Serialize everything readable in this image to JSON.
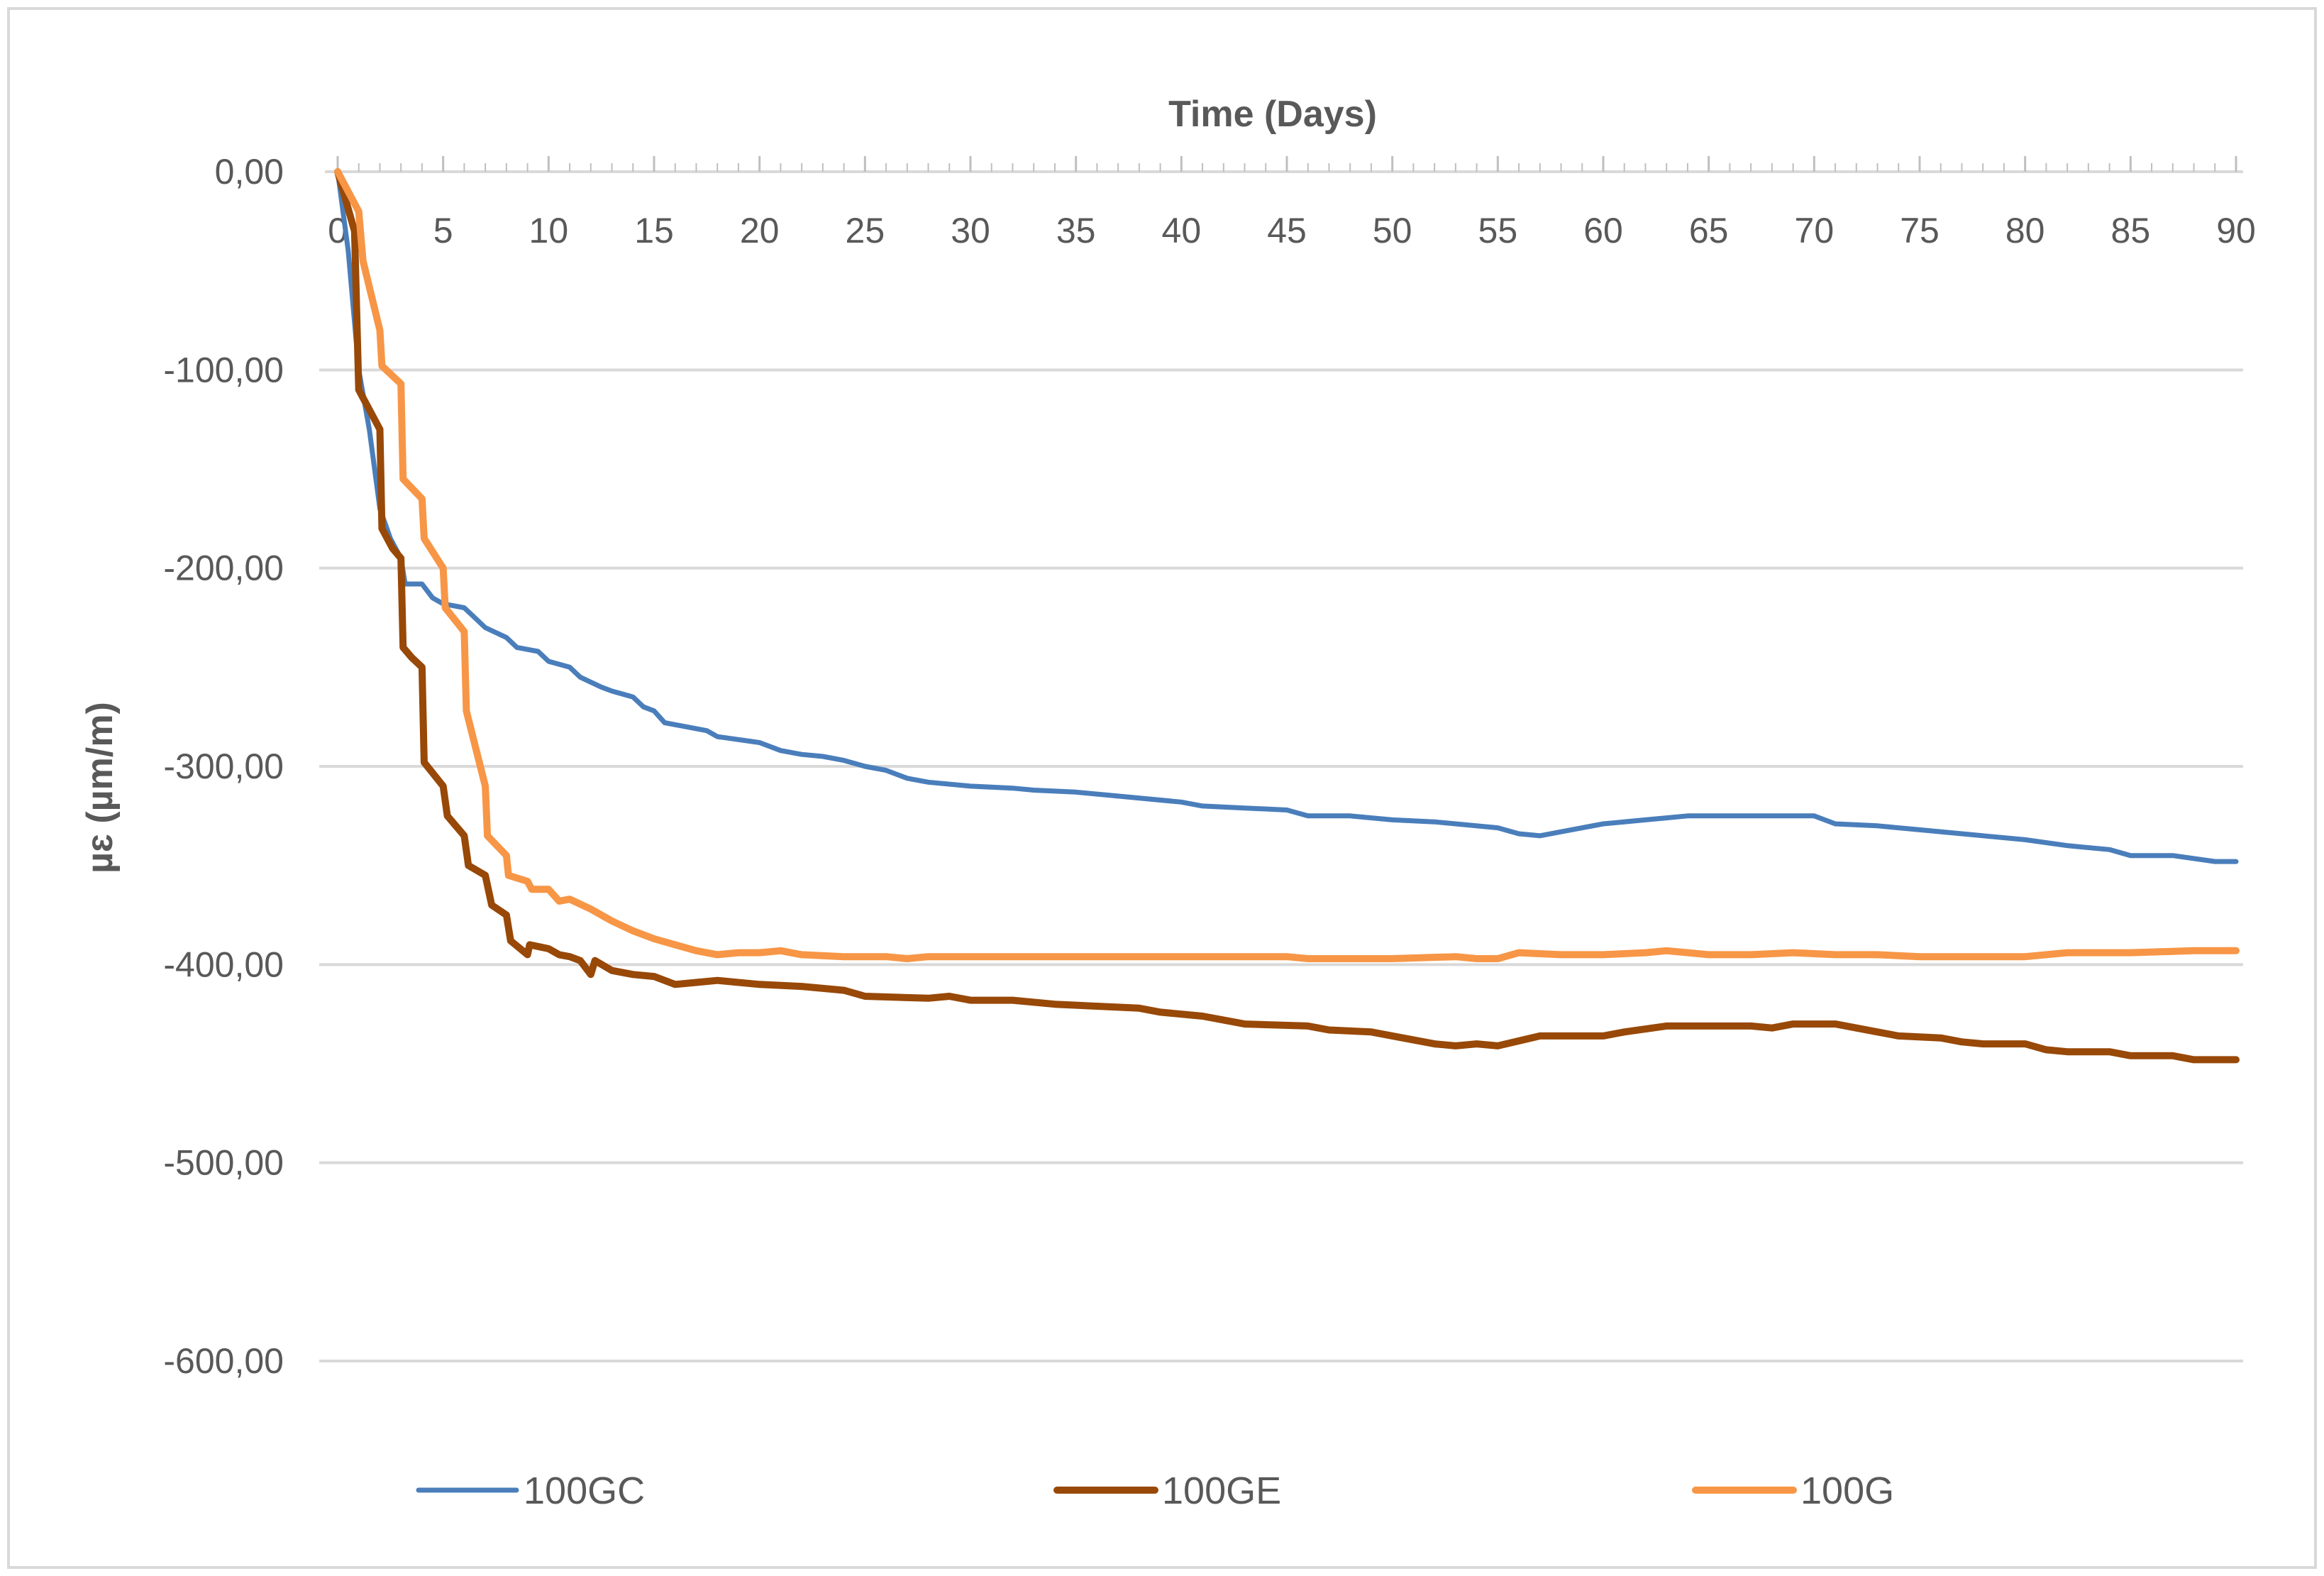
{
  "chart_data": {
    "type": "line",
    "title": "",
    "xlabel": "Time (Days)",
    "ylabel": "µɛ (µm/m)",
    "xlim": [
      0,
      90
    ],
    "ylim": [
      -600,
      0
    ],
    "x_ticks": [
      0,
      5,
      10,
      15,
      20,
      25,
      30,
      35,
      40,
      45,
      50,
      55,
      60,
      65,
      70,
      75,
      80,
      85,
      90
    ],
    "x_tick_labels": [
      "0",
      "5",
      "10",
      "15",
      "20",
      "25",
      "30",
      "35",
      "40",
      "45",
      "50",
      "55",
      "60",
      "65",
      "70",
      "75",
      "80",
      "85",
      "90"
    ],
    "y_ticks": [
      0,
      -100,
      -200,
      -300,
      -400,
      -500,
      -600
    ],
    "y_tick_labels": [
      "0,00",
      "-100,00",
      "-200,00",
      "-300,00",
      "-400,00",
      "-500,00",
      "-600,00"
    ],
    "grid": "horizontal",
    "x_axis_position": "top",
    "legend_position": "bottom",
    "series": [
      {
        "name": "100GC",
        "color": "#4A7EBB",
        "points": [
          [
            0,
            0
          ],
          [
            0.5,
            -40
          ],
          [
            1,
            -100
          ],
          [
            1.5,
            -130
          ],
          [
            2,
            -170
          ],
          [
            2.5,
            -185
          ],
          [
            3,
            -195
          ],
          [
            3.2,
            -208
          ],
          [
            4,
            -208
          ],
          [
            4.5,
            -215
          ],
          [
            5,
            -218
          ],
          [
            6,
            -220
          ],
          [
            6.5,
            -225
          ],
          [
            7,
            -230
          ],
          [
            8,
            -235
          ],
          [
            8.5,
            -240
          ],
          [
            9.5,
            -242
          ],
          [
            10,
            -247
          ],
          [
            11,
            -250
          ],
          [
            11.5,
            -255
          ],
          [
            12.5,
            -260
          ],
          [
            13,
            -262
          ],
          [
            14,
            -265
          ],
          [
            14.5,
            -270
          ],
          [
            15,
            -272
          ],
          [
            15.5,
            -278
          ],
          [
            16.5,
            -280
          ],
          [
            17.5,
            -282
          ],
          [
            18,
            -285
          ],
          [
            20,
            -288
          ],
          [
            21,
            -292
          ],
          [
            22,
            -294
          ],
          [
            23,
            -295
          ],
          [
            24,
            -297
          ],
          [
            25,
            -300
          ],
          [
            26,
            -302
          ],
          [
            27,
            -306
          ],
          [
            28,
            -308
          ],
          [
            30,
            -310
          ],
          [
            32,
            -311
          ],
          [
            33,
            -312
          ],
          [
            35,
            -313
          ],
          [
            37,
            -315
          ],
          [
            40,
            -318
          ],
          [
            41,
            -320
          ],
          [
            43,
            -321
          ],
          [
            45,
            -322
          ],
          [
            46,
            -325
          ],
          [
            48,
            -325
          ],
          [
            50,
            -327
          ],
          [
            52,
            -328
          ],
          [
            55,
            -331
          ],
          [
            56,
            -334
          ],
          [
            57,
            -335
          ],
          [
            58,
            -333
          ],
          [
            60,
            -329
          ],
          [
            62,
            -327
          ],
          [
            63,
            -326
          ],
          [
            64,
            -325
          ],
          [
            66,
            -325
          ],
          [
            68,
            -325
          ],
          [
            70,
            -325
          ],
          [
            71,
            -329
          ],
          [
            73,
            -330
          ],
          [
            75,
            -332
          ],
          [
            78,
            -335
          ],
          [
            80,
            -337
          ],
          [
            82,
            -340
          ],
          [
            84,
            -342
          ],
          [
            85,
            -345
          ],
          [
            87,
            -345
          ],
          [
            89,
            -348
          ],
          [
            90,
            -348
          ]
        ]
      },
      {
        "name": "100GE",
        "color": "#984807",
        "points": [
          [
            0,
            0
          ],
          [
            0.8,
            -30
          ],
          [
            1,
            -110
          ],
          [
            1.5,
            -120
          ],
          [
            2,
            -130
          ],
          [
            2.1,
            -180
          ],
          [
            2.6,
            -190
          ],
          [
            3,
            -195
          ],
          [
            3.1,
            -240
          ],
          [
            3.5,
            -245
          ],
          [
            4,
            -250
          ],
          [
            4.1,
            -298
          ],
          [
            5,
            -310
          ],
          [
            5.2,
            -325
          ],
          [
            6,
            -335
          ],
          [
            6.2,
            -350
          ],
          [
            7,
            -355
          ],
          [
            7.3,
            -370
          ],
          [
            8,
            -375
          ],
          [
            8.2,
            -388
          ],
          [
            9,
            -395
          ],
          [
            9.1,
            -390
          ],
          [
            10,
            -392
          ],
          [
            10.5,
            -395
          ],
          [
            11,
            -396
          ],
          [
            11.5,
            -398
          ],
          [
            12,
            -405
          ],
          [
            12.2,
            -398
          ],
          [
            13,
            -403
          ],
          [
            14,
            -405
          ],
          [
            15,
            -406
          ],
          [
            16,
            -410
          ],
          [
            17,
            -409
          ],
          [
            18,
            -408
          ],
          [
            20,
            -410
          ],
          [
            22,
            -411
          ],
          [
            24,
            -413
          ],
          [
            25,
            -416
          ],
          [
            28,
            -417
          ],
          [
            29,
            -416
          ],
          [
            30,
            -418
          ],
          [
            32,
            -418
          ],
          [
            34,
            -420
          ],
          [
            38,
            -422
          ],
          [
            39,
            -424
          ],
          [
            41,
            -426
          ],
          [
            43,
            -430
          ],
          [
            46,
            -431
          ],
          [
            47,
            -433
          ],
          [
            49,
            -434
          ],
          [
            50,
            -436
          ],
          [
            52,
            -440
          ],
          [
            53,
            -441
          ],
          [
            54,
            -440
          ],
          [
            55,
            -441
          ],
          [
            57,
            -436
          ],
          [
            60,
            -436
          ],
          [
            61,
            -434
          ],
          [
            63,
            -431
          ],
          [
            65,
            -431
          ],
          [
            67,
            -431
          ],
          [
            68,
            -432
          ],
          [
            69,
            -430
          ],
          [
            71,
            -430
          ],
          [
            73,
            -434
          ],
          [
            74,
            -436
          ],
          [
            76,
            -437
          ],
          [
            77,
            -439
          ],
          [
            78,
            -440
          ],
          [
            80,
            -440
          ],
          [
            81,
            -443
          ],
          [
            82,
            -444
          ],
          [
            84,
            -444
          ],
          [
            85,
            -446
          ],
          [
            87,
            -446
          ],
          [
            88,
            -448
          ],
          [
            90,
            -448
          ]
        ]
      },
      {
        "name": "100G",
        "color": "#F79646",
        "points": [
          [
            0,
            0
          ],
          [
            1,
            -20
          ],
          [
            1.2,
            -45
          ],
          [
            2,
            -80
          ],
          [
            2.1,
            -98
          ],
          [
            3,
            -107
          ],
          [
            3.1,
            -155
          ],
          [
            4,
            -165
          ],
          [
            4.1,
            -185
          ],
          [
            5,
            -200
          ],
          [
            5.1,
            -220
          ],
          [
            6,
            -232
          ],
          [
            6.1,
            -272
          ],
          [
            7,
            -310
          ],
          [
            7.1,
            -335
          ],
          [
            8,
            -345
          ],
          [
            8.1,
            -355
          ],
          [
            9,
            -358
          ],
          [
            9.2,
            -362
          ],
          [
            10,
            -362
          ],
          [
            10.5,
            -368
          ],
          [
            11,
            -367
          ],
          [
            12,
            -372
          ],
          [
            13,
            -378
          ],
          [
            14,
            -383
          ],
          [
            15,
            -387
          ],
          [
            16,
            -390
          ],
          [
            17,
            -393
          ],
          [
            18,
            -395
          ],
          [
            19,
            -394
          ],
          [
            20,
            -394
          ],
          [
            21,
            -393
          ],
          [
            22,
            -395
          ],
          [
            24,
            -396
          ],
          [
            25,
            -396
          ],
          [
            26,
            -396
          ],
          [
            27,
            -397
          ],
          [
            28,
            -396
          ],
          [
            29,
            -396
          ],
          [
            30,
            -396
          ],
          [
            35,
            -396
          ],
          [
            40,
            -396
          ],
          [
            45,
            -396
          ],
          [
            46,
            -397
          ],
          [
            48,
            -397
          ],
          [
            50,
            -397
          ],
          [
            53,
            -396
          ],
          [
            54,
            -397
          ],
          [
            55,
            -397
          ],
          [
            56,
            -394
          ],
          [
            58,
            -395
          ],
          [
            60,
            -395
          ],
          [
            62,
            -394
          ],
          [
            63,
            -393
          ],
          [
            65,
            -395
          ],
          [
            67,
            -395
          ],
          [
            69,
            -394
          ],
          [
            71,
            -395
          ],
          [
            73,
            -395
          ],
          [
            75,
            -396
          ],
          [
            78,
            -396
          ],
          [
            80,
            -396
          ],
          [
            82,
            -394
          ],
          [
            85,
            -394
          ],
          [
            88,
            -393
          ],
          [
            90,
            -393
          ]
        ]
      }
    ]
  }
}
